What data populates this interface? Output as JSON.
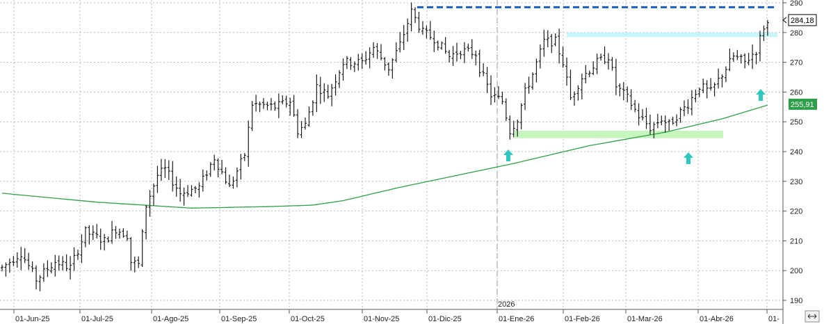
{
  "chart_data": {
    "type": "ohlc",
    "y_range": [
      186,
      290
    ],
    "y_ticks": [
      190,
      200,
      210,
      220,
      230,
      240,
      250,
      260,
      270,
      280,
      290
    ],
    "x_tick_labels": [
      "01-Jun-25",
      "01-Jul-25",
      "01-Ago-25",
      "01-Sep-25",
      "01-Oct-25",
      "01-Nov-25",
      "01-Dic-25",
      "01-Ene-26",
      "01-Feb-26",
      "01-Mar-26",
      "01-Abr-26",
      "01-"
    ],
    "year_marker": "2026",
    "last_price_label": "284,18",
    "last_price": 284.18,
    "ma_label": "255,91",
    "ma_value": 255.91,
    "resistance_dashed": 288.5,
    "resistance_band": [
      278.5,
      280
    ],
    "support_band": [
      244.5,
      247
    ],
    "series": [
      {
        "type": "ohlc",
        "anchors": [
          [
            0,
            201
          ],
          [
            5,
            206
          ],
          [
            9,
            197
          ],
          [
            14,
            203
          ],
          [
            18,
            201
          ],
          [
            22,
            213
          ],
          [
            27,
            210
          ],
          [
            30,
            214
          ],
          [
            33,
            212
          ],
          [
            34,
            203
          ],
          [
            36,
            202
          ],
          [
            38,
            222
          ],
          [
            41,
            232
          ],
          [
            43,
            234
          ],
          [
            47,
            226
          ],
          [
            52,
            228
          ],
          [
            56,
            238
          ],
          [
            60,
            228
          ],
          [
            64,
            239
          ],
          [
            66,
            256
          ],
          [
            72,
            255
          ],
          [
            76,
            257
          ],
          [
            78,
            247
          ],
          [
            80,
            249
          ],
          [
            83,
            262
          ],
          [
            86,
            259
          ],
          [
            90,
            270
          ],
          [
            95,
            270
          ],
          [
            98,
            275
          ],
          [
            102,
            268
          ],
          [
            105,
            276
          ],
          [
            108,
            287
          ],
          [
            111,
            280
          ],
          [
            114,
            278
          ],
          [
            118,
            272
          ],
          [
            121,
            274
          ],
          [
            125,
            273
          ],
          [
            126,
            268
          ],
          [
            129,
            259
          ],
          [
            132,
            257
          ],
          [
            134,
            247
          ],
          [
            136,
            251
          ],
          [
            138,
            260
          ],
          [
            140,
            266
          ],
          [
            143,
            277
          ],
          [
            146,
            277
          ],
          [
            148,
            270
          ],
          [
            150,
            258
          ],
          [
            153,
            265
          ],
          [
            157,
            270
          ],
          [
            160,
            272
          ],
          [
            162,
            262
          ],
          [
            165,
            258
          ],
          [
            168,
            252
          ],
          [
            171,
            248
          ],
          [
            174,
            251
          ],
          [
            176,
            249
          ],
          [
            178,
            252
          ],
          [
            181,
            256
          ],
          [
            184,
            262
          ],
          [
            187,
            260
          ],
          [
            190,
            266
          ],
          [
            193,
            272
          ],
          [
            196,
            270
          ],
          [
            199,
            274
          ],
          [
            201,
            282
          ],
          [
            202,
            283
          ]
        ]
      },
      {
        "name": "",
        "type": "line",
        "color": "#2e9e4a",
        "anchors": [
          [
            0,
            226
          ],
          [
            25,
            223
          ],
          [
            50,
            221
          ],
          [
            70,
            221.5
          ],
          [
            82,
            222
          ],
          [
            90,
            223.5
          ],
          [
            105,
            228
          ],
          [
            120,
            232
          ],
          [
            135,
            236
          ],
          [
            155,
            242
          ],
          [
            175,
            246.5
          ],
          [
            190,
            251
          ],
          [
            203,
            256
          ]
        ]
      }
    ],
    "colors": {
      "bars": "#1a1a1a",
      "ma_line": "#2e9e4a",
      "resistance": "#1f5fbf",
      "res_band": "#c8f5f7",
      "sup_band": "#c6f5bd",
      "arrows": "#2ec8c0",
      "grid": "#b8b8b8"
    },
    "grid": true
  },
  "ui": {
    "year_label": "2026",
    "price_tag": "284,18",
    "ma_tag": "255,91"
  }
}
